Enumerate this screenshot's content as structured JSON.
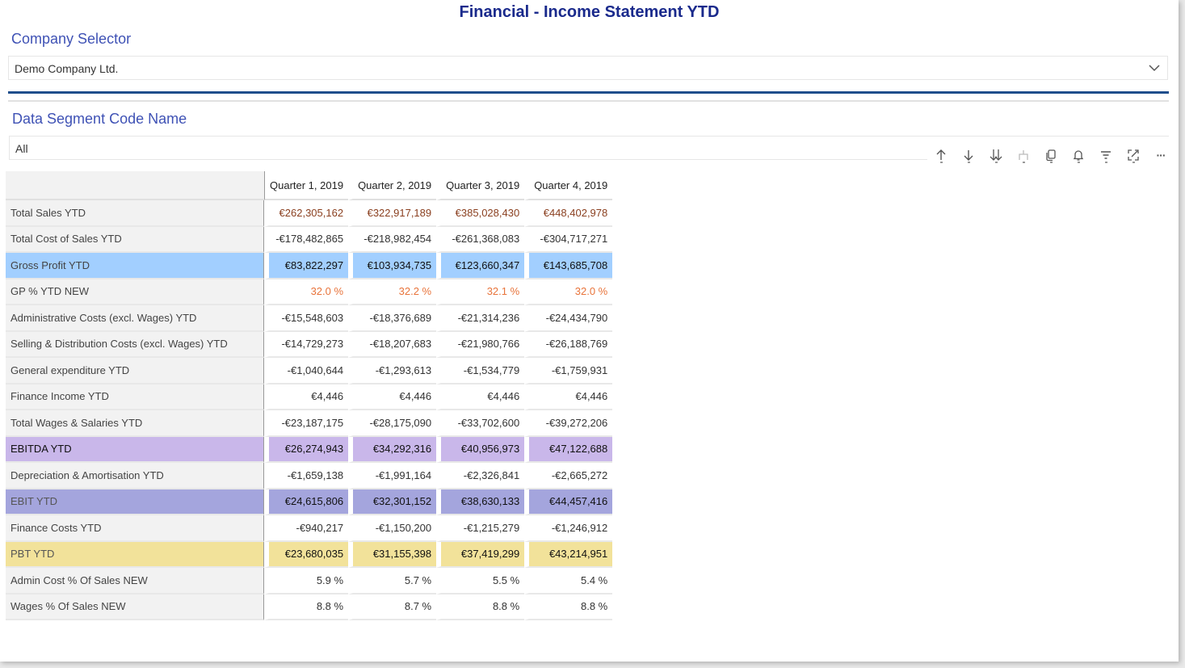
{
  "page": {
    "title": "Financial - Income Statement YTD"
  },
  "company_slicer": {
    "label": "Company Selector",
    "value": "Demo Company Ltd."
  },
  "segment_slicer": {
    "label": "Data Segment Code Name",
    "value": "All"
  },
  "toolbar": {
    "icons": [
      "sort-ascending-icon",
      "sort-descending-icon",
      "expand-all-down-icon",
      "hierarchy-icon",
      "copy-icon",
      "bell-icon",
      "filter-icon",
      "focus-mode-icon",
      "more-options-icon"
    ],
    "more_label": "···"
  },
  "colors": {
    "title": "#1a2a8c",
    "slicer_label": "#3f52b5",
    "gross_profit_row": "#a2cfff",
    "ebitda_row": "#c9b7ea",
    "ebit_row": "#a4a5dd",
    "pbt_row": "#f2e29a",
    "sales_text": "#8a3f1f",
    "gp_pct_text": "#e8743b"
  },
  "matrix": {
    "columns": [
      "Quarter 1, 2019",
      "Quarter 2, 2019",
      "Quarter 3, 2019",
      "Quarter 4, 2019"
    ],
    "rows": [
      {
        "label": "Total Sales YTD",
        "values": [
          "€262,305,162",
          "€322,917,189",
          "€385,028,430",
          "€448,402,978"
        ]
      },
      {
        "label": "Total Cost of Sales YTD",
        "values": [
          "-€178,482,865",
          "-€218,982,454",
          "-€261,368,083",
          "-€304,717,271"
        ]
      },
      {
        "label": "Gross Profit YTD",
        "values": [
          "€83,822,297",
          "€103,934,735",
          "€123,660,347",
          "€143,685,708"
        ]
      },
      {
        "label": "GP % YTD NEW",
        "values": [
          "32.0 %",
          "32.2 %",
          "32.1 %",
          "32.0 %"
        ]
      },
      {
        "label": "Administrative Costs (excl. Wages) YTD",
        "values": [
          "-€15,548,603",
          "-€18,376,689",
          "-€21,314,236",
          "-€24,434,790"
        ]
      },
      {
        "label": "Selling & Distribution Costs (excl. Wages) YTD",
        "values": [
          "-€14,729,273",
          "-€18,207,683",
          "-€21,980,766",
          "-€26,188,769"
        ]
      },
      {
        "label": "General expenditure YTD",
        "values": [
          "-€1,040,644",
          "-€1,293,613",
          "-€1,534,779",
          "-€1,759,931"
        ]
      },
      {
        "label": "Finance Income YTD",
        "values": [
          "€4,446",
          "€4,446",
          "€4,446",
          "€4,446"
        ]
      },
      {
        "label": "Total Wages & Salaries YTD",
        "values": [
          "-€23,187,175",
          "-€28,175,090",
          "-€33,702,600",
          "-€39,272,206"
        ]
      },
      {
        "label": "EBITDA YTD",
        "values": [
          "€26,274,943",
          "€34,292,316",
          "€40,956,973",
          "€47,122,688"
        ]
      },
      {
        "label": "Depreciation & Amortisation YTD",
        "values": [
          "-€1,659,138",
          "-€1,991,164",
          "-€2,326,841",
          "-€2,665,272"
        ]
      },
      {
        "label": "EBIT YTD",
        "values": [
          "€24,615,806",
          "€32,301,152",
          "€38,630,133",
          "€44,457,416"
        ]
      },
      {
        "label": "Finance Costs YTD",
        "values": [
          "-€940,217",
          "-€1,150,200",
          "-€1,215,279",
          "-€1,246,912"
        ]
      },
      {
        "label": "PBT YTD",
        "values": [
          "€23,680,035",
          "€31,155,398",
          "€37,419,299",
          "€43,214,951"
        ]
      },
      {
        "label": "Admin Cost % Of Sales NEW",
        "values": [
          "5.9 %",
          "5.7 %",
          "5.5 %",
          "5.4 %"
        ]
      },
      {
        "label": "Wages % Of Sales NEW",
        "values": [
          "8.8 %",
          "8.7 %",
          "8.8 %",
          "8.8 %"
        ]
      }
    ]
  }
}
